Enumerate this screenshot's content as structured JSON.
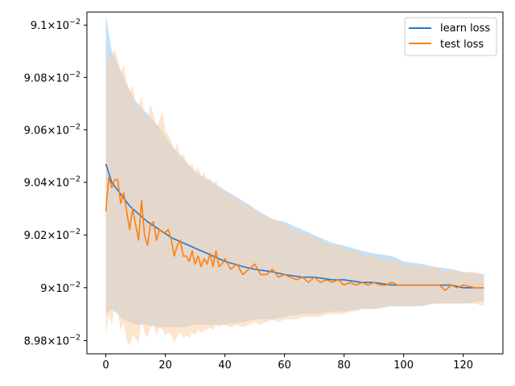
{
  "chart_data": {
    "type": "line",
    "title": "",
    "xlabel": "",
    "ylabel": "",
    "xlim": [
      -6.35,
      133.35
    ],
    "ylim": [
      0.08975,
      0.09105
    ],
    "yscale": "log",
    "grid": false,
    "legend_position": "top-right",
    "xticks": [
      0,
      20,
      40,
      60,
      80,
      100,
      120
    ],
    "xtick_labels": [
      "0",
      "20",
      "40",
      "60",
      "80",
      "100",
      "120"
    ],
    "yticks": [
      0.0898,
      0.09,
      0.0902,
      0.0904,
      0.0906,
      0.0908,
      0.091
    ],
    "ytick_labels": [
      {
        "mant": "8.98",
        "exp": "−2"
      },
      {
        "mant": "9",
        "exp": "−2"
      },
      {
        "mant": "9.02",
        "exp": "−2"
      },
      {
        "mant": "9.04",
        "exp": "−2"
      },
      {
        "mant": "9.06",
        "exp": "−2"
      },
      {
        "mant": "9.08",
        "exp": "−2"
      },
      {
        "mant": "9.1",
        "exp": "−2"
      }
    ],
    "legend": [
      "learn loss",
      "test loss"
    ],
    "series": [
      {
        "name": "learn loss",
        "color": "#1f77d4",
        "band_color": "#9ecdf5",
        "x": [
          0,
          2,
          4,
          6,
          8,
          10,
          14,
          18,
          22,
          26,
          30,
          36,
          40,
          46,
          50,
          56,
          60,
          66,
          70,
          76,
          80,
          86,
          90,
          96,
          100,
          106,
          110,
          116,
          120,
          127
        ],
        "y": [
          0.09047,
          0.0904,
          0.09037,
          0.09034,
          0.09031,
          0.09029,
          0.09025,
          0.09022,
          0.09019,
          0.09017,
          0.09015,
          0.09012,
          0.0901,
          0.09008,
          0.09007,
          0.09006,
          0.09005,
          0.09004,
          0.09004,
          0.09003,
          0.09003,
          0.09002,
          0.09002,
          0.09001,
          0.09001,
          0.09001,
          0.09001,
          0.09001,
          0.09,
          0.09
        ],
        "upper": [
          0.09104,
          0.0909,
          0.09085,
          0.0908,
          0.09075,
          0.09071,
          0.09066,
          0.09061,
          0.09054,
          0.09049,
          0.09044,
          0.0904,
          0.09037,
          0.09033,
          0.0903,
          0.09026,
          0.09025,
          0.09022,
          0.0902,
          0.09017,
          0.09016,
          0.09014,
          0.09013,
          0.09012,
          0.0901,
          0.09009,
          0.09008,
          0.09007,
          0.09006,
          0.09005
        ],
        "lower": [
          0.0899,
          0.08992,
          0.0899,
          0.08988,
          0.08987,
          0.08986,
          0.08986,
          0.08985,
          0.08985,
          0.08985,
          0.08986,
          0.08986,
          0.08986,
          0.08987,
          0.08988,
          0.08988,
          0.08989,
          0.0899,
          0.0899,
          0.08991,
          0.08991,
          0.08992,
          0.08992,
          0.08993,
          0.08993,
          0.08993,
          0.08994,
          0.08994,
          0.08994,
          0.08995
        ]
      },
      {
        "name": "test loss",
        "color": "#ff7f0e",
        "band_color": "#fdd0a5",
        "x": [
          0,
          1,
          2,
          3,
          4,
          5,
          6,
          7,
          8,
          9,
          10,
          11,
          12,
          13,
          14,
          15,
          16,
          17,
          18,
          19,
          20,
          21,
          22,
          23,
          24,
          25,
          26,
          27,
          28,
          29,
          30,
          31,
          32,
          33,
          34,
          35,
          36,
          37,
          38,
          39,
          40,
          42,
          44,
          46,
          48,
          50,
          52,
          54,
          56,
          58,
          60,
          62,
          64,
          66,
          68,
          70,
          72,
          74,
          76,
          78,
          80,
          82,
          84,
          86,
          88,
          90,
          92,
          94,
          96,
          98,
          100,
          104,
          108,
          112,
          114,
          116,
          118,
          120,
          124,
          127
        ],
        "y": [
          0.09029,
          0.09042,
          0.09038,
          0.09041,
          0.09041,
          0.09032,
          0.09036,
          0.09029,
          0.09022,
          0.0903,
          0.09024,
          0.09018,
          0.09033,
          0.0902,
          0.09016,
          0.09024,
          0.09025,
          0.09018,
          0.09022,
          0.09021,
          0.09021,
          0.09022,
          0.09018,
          0.09012,
          0.09016,
          0.09018,
          0.09012,
          0.09012,
          0.0901,
          0.09014,
          0.09009,
          0.09012,
          0.09008,
          0.09011,
          0.09009,
          0.09013,
          0.09008,
          0.09014,
          0.09008,
          0.09009,
          0.09011,
          0.09007,
          0.09009,
          0.09005,
          0.09007,
          0.09009,
          0.09005,
          0.09005,
          0.09007,
          0.09004,
          0.09005,
          0.09004,
          0.09003,
          0.09004,
          0.09002,
          0.09004,
          0.09002,
          0.09003,
          0.09002,
          0.09003,
          0.09001,
          0.09002,
          0.09001,
          0.09002,
          0.09001,
          0.09002,
          0.09001,
          0.09001,
          0.09002,
          0.09001,
          0.09001,
          0.09001,
          0.09001,
          0.09001,
          0.08999,
          0.09001,
          0.09,
          0.09001,
          0.09,
          0.09
        ],
        "upper": [
          0.09079,
          0.0909,
          0.09088,
          0.09091,
          0.09087,
          0.09082,
          0.09085,
          0.09078,
          0.09075,
          0.09077,
          0.0907,
          0.09068,
          0.09073,
          0.09066,
          0.09064,
          0.0907,
          0.09066,
          0.09061,
          0.09064,
          0.09067,
          0.0906,
          0.09058,
          0.09056,
          0.09052,
          0.09055,
          0.0905,
          0.09051,
          0.09048,
          0.09046,
          0.09047,
          0.09044,
          0.09046,
          0.09042,
          0.09044,
          0.0904,
          0.09042,
          0.09038,
          0.09041,
          0.09037,
          0.09038,
          0.09036,
          0.09035,
          0.09034,
          0.09031,
          0.09032,
          0.09029,
          0.09028,
          0.09027,
          0.09026,
          0.09025,
          0.09024,
          0.09023,
          0.09021,
          0.09021,
          0.0902,
          0.09019,
          0.09018,
          0.09017,
          0.09016,
          0.09016,
          0.09015,
          0.09014,
          0.09014,
          0.09013,
          0.09012,
          0.09012,
          0.09011,
          0.09011,
          0.0901,
          0.0901,
          0.09009,
          0.09008,
          0.09008,
          0.09007,
          0.09006,
          0.09007,
          0.09006,
          0.09006,
          0.09006,
          0.09005
        ],
        "lower": [
          0.08982,
          0.0899,
          0.08986,
          0.08993,
          0.08991,
          0.08984,
          0.08987,
          0.0898,
          0.08978,
          0.08982,
          0.08981,
          0.08979,
          0.08988,
          0.08983,
          0.08981,
          0.08985,
          0.08986,
          0.08982,
          0.08985,
          0.08984,
          0.08982,
          0.08983,
          0.08982,
          0.08979,
          0.08982,
          0.08983,
          0.08981,
          0.08982,
          0.08981,
          0.08983,
          0.08982,
          0.08984,
          0.08983,
          0.08984,
          0.08984,
          0.08985,
          0.08984,
          0.08986,
          0.08985,
          0.08986,
          0.08986,
          0.08985,
          0.08986,
          0.08985,
          0.08986,
          0.08987,
          0.08986,
          0.08987,
          0.08988,
          0.08987,
          0.08988,
          0.08988,
          0.08988,
          0.08989,
          0.08989,
          0.08989,
          0.08989,
          0.0899,
          0.0899,
          0.0899,
          0.0899,
          0.08991,
          0.08991,
          0.08992,
          0.08992,
          0.08992,
          0.08992,
          0.08993,
          0.08993,
          0.08993,
          0.08993,
          0.08993,
          0.08994,
          0.08994,
          0.08994,
          0.08994,
          0.08994,
          0.08994,
          0.08994,
          0.08993
        ]
      }
    ]
  }
}
